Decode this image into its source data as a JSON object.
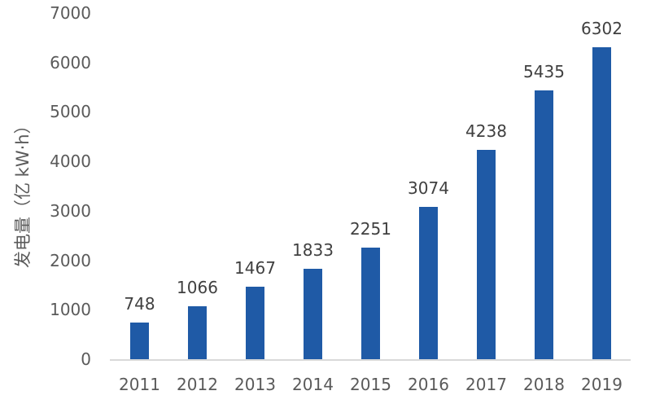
{
  "chart_data": {
    "type": "bar",
    "title": "",
    "xlabel": "",
    "ylabel": "发电量（亿 kW·h）",
    "categories": [
      "2011",
      "2012",
      "2013",
      "2014",
      "2015",
      "2016",
      "2017",
      "2018",
      "2019"
    ],
    "values": [
      748,
      1066,
      1467,
      1833,
      2251,
      3074,
      4238,
      5435,
      6302
    ],
    "data_labels": [
      "748",
      "1066",
      "1467",
      "1833",
      "2251",
      "3074",
      "4238",
      "5435",
      "6302"
    ],
    "ylim": [
      0,
      7000
    ],
    "yticks": [
      "0",
      "1000",
      "2000",
      "3000",
      "4000",
      "5000",
      "6000",
      "7000"
    ],
    "grid": false,
    "legend": null,
    "bar_color": "#1f5aa6"
  }
}
